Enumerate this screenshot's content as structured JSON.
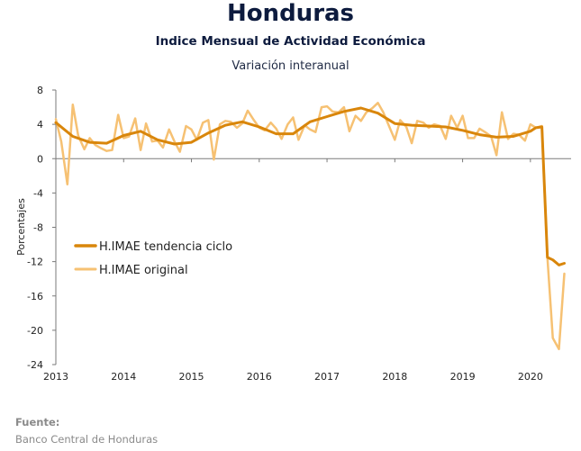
{
  "header": {
    "title": "Honduras",
    "subtitle": "Indice Mensual de  Actividad Económica",
    "subsubtitle": "Variación interanual"
  },
  "source": {
    "label": "Fuente:",
    "text": "Banco Central de Honduras"
  },
  "colors": {
    "trend": "#D9860B",
    "original": "#F6C173",
    "axis": "#7a7a7a"
  },
  "chart_data": {
    "type": "line",
    "title": "Honduras",
    "subtitle": "Indice Mensual de  Actividad Económica",
    "ylabel": "Porcentajes",
    "xlabel": "",
    "ylim": [
      -24,
      8
    ],
    "yticks": [
      8,
      4,
      0,
      -4,
      -8,
      -12,
      -16,
      -20,
      -24
    ],
    "xlim": [
      2013.0,
      2020.6
    ],
    "xticks": [
      2013,
      2014,
      2015,
      2016,
      2017,
      2018,
      2019,
      2020
    ],
    "grid": false,
    "legend_position": "middle-left",
    "series": [
      {
        "name": "H.IMAE tendencia ciclo",
        "x": [
          2013.0,
          2013.25,
          2013.5,
          2013.75,
          2014.0,
          2014.25,
          2014.5,
          2014.75,
          2015.0,
          2015.25,
          2015.5,
          2015.75,
          2016.0,
          2016.25,
          2016.5,
          2016.75,
          2017.0,
          2017.25,
          2017.5,
          2017.75,
          2018.0,
          2018.25,
          2018.5,
          2018.75,
          2019.0,
          2019.25,
          2019.5,
          2019.75,
          2020.0,
          2020.08,
          2020.17,
          2020.25,
          2020.33,
          2020.42,
          2020.5
        ],
        "values": [
          4.2,
          2.6,
          1.9,
          1.8,
          2.7,
          3.2,
          2.2,
          1.7,
          1.9,
          3.0,
          3.9,
          4.3,
          3.7,
          2.9,
          2.9,
          4.3,
          4.9,
          5.5,
          5.9,
          5.3,
          4.1,
          3.9,
          3.8,
          3.7,
          3.3,
          2.8,
          2.5,
          2.6,
          3.2,
          3.6,
          3.7,
          -11.5,
          -11.8,
          -12.4,
          -12.2
        ]
      },
      {
        "name": "H.IMAE original",
        "x": [
          2013.0,
          2013.08,
          2013.17,
          2013.25,
          2013.33,
          2013.42,
          2013.5,
          2013.58,
          2013.67,
          2013.75,
          2013.83,
          2013.92,
          2014.0,
          2014.08,
          2014.17,
          2014.25,
          2014.33,
          2014.42,
          2014.5,
          2014.58,
          2014.67,
          2014.75,
          2014.83,
          2014.92,
          2015.0,
          2015.08,
          2015.17,
          2015.25,
          2015.33,
          2015.42,
          2015.5,
          2015.58,
          2015.67,
          2015.75,
          2015.83,
          2015.92,
          2016.0,
          2016.08,
          2016.17,
          2016.25,
          2016.33,
          2016.42,
          2016.5,
          2016.58,
          2016.67,
          2016.75,
          2016.83,
          2016.92,
          2017.0,
          2017.08,
          2017.17,
          2017.25,
          2017.33,
          2017.42,
          2017.5,
          2017.58,
          2017.67,
          2017.75,
          2017.83,
          2017.92,
          2018.0,
          2018.08,
          2018.17,
          2018.25,
          2018.33,
          2018.42,
          2018.5,
          2018.58,
          2018.67,
          2018.75,
          2018.83,
          2018.92,
          2019.0,
          2019.08,
          2019.17,
          2019.25,
          2019.33,
          2019.42,
          2019.5,
          2019.58,
          2019.67,
          2019.75,
          2019.83,
          2019.92,
          2020.0,
          2020.08,
          2020.17,
          2020.25,
          2020.33,
          2020.42,
          2020.5
        ],
        "values": [
          4.6,
          2.0,
          -3.0,
          6.3,
          2.7,
          1.1,
          2.4,
          1.6,
          1.2,
          0.9,
          1.0,
          5.1,
          2.4,
          2.6,
          4.7,
          1.0,
          4.1,
          2.0,
          2.1,
          1.3,
          3.4,
          2.0,
          0.8,
          3.8,
          3.4,
          2.2,
          4.2,
          4.5,
          -0.1,
          4.0,
          4.4,
          4.3,
          3.6,
          4.1,
          5.6,
          4.5,
          3.6,
          3.3,
          4.2,
          3.5,
          2.3,
          4.0,
          4.8,
          2.2,
          3.9,
          3.4,
          3.1,
          6.0,
          6.1,
          5.5,
          5.4,
          6.0,
          3.2,
          5.0,
          4.4,
          5.4,
          5.9,
          6.5,
          5.4,
          3.7,
          2.2,
          4.5,
          3.7,
          1.8,
          4.4,
          4.2,
          3.6,
          4.0,
          3.8,
          2.3,
          5.0,
          3.6,
          5.0,
          2.4,
          2.4,
          3.5,
          3.1,
          2.6,
          0.4,
          5.4,
          2.3,
          2.9,
          2.8,
          2.1,
          4.0,
          3.6,
          3.8,
          -11.5,
          -20.9,
          -22.2,
          -13.4
        ]
      }
    ]
  }
}
